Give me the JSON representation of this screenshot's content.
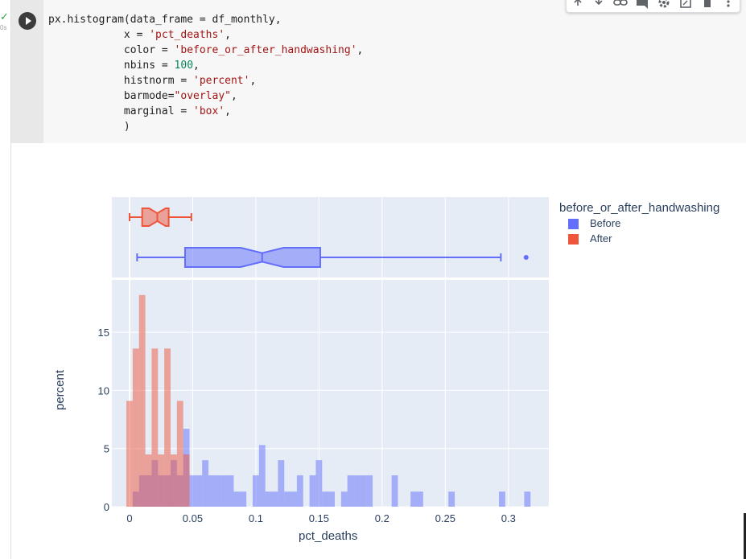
{
  "cell": {
    "status": "✓",
    "exec_time": "0s",
    "code_lines": [
      [
        [
          "t",
          "px.histogram(data_frame = df_monthly,"
        ]
      ],
      [
        [
          "t",
          "            x = "
        ],
        [
          "s",
          "'pct_deaths'"
        ],
        [
          "t",
          ","
        ]
      ],
      [
        [
          "t",
          "            color = "
        ],
        [
          "s",
          "'before_or_after_handwashing'"
        ],
        [
          "t",
          ","
        ]
      ],
      [
        [
          "t",
          "            nbins = "
        ],
        [
          "n",
          "100"
        ],
        [
          "t",
          ","
        ]
      ],
      [
        [
          "t",
          "            histnorm = "
        ],
        [
          "s",
          "'percent'"
        ],
        [
          "t",
          ","
        ]
      ],
      [
        [
          "t",
          "            barmode="
        ],
        [
          "s",
          "\"overlay\""
        ],
        [
          "t",
          ","
        ]
      ],
      [
        [
          "t",
          "            marginal = "
        ],
        [
          "s",
          "'box'"
        ],
        [
          "t",
          ","
        ]
      ],
      [
        [
          "t",
          "            )"
        ]
      ]
    ],
    "toolbar_icons": [
      "arrow-up-icon",
      "arrow-down-icon",
      "link-icon",
      "comment-icon",
      "gear-icon",
      "mirror-cell-icon",
      "delete-icon",
      "more-icon"
    ]
  },
  "chart_data": {
    "type": "histogram",
    "histnorm": "percent",
    "barmode": "overlay",
    "marginal": "box",
    "xlabel": "pct_deaths",
    "ylabel": "percent",
    "xlim": [
      -0.014,
      0.332
    ],
    "ylim": [
      0,
      19.5
    ],
    "x_ticks": [
      0,
      0.05,
      0.1,
      0.15,
      0.2,
      0.25,
      0.3
    ],
    "x_tick_labels": [
      "0",
      "0.05",
      "0.1",
      "0.15",
      "0.2",
      "0.25",
      "0.3"
    ],
    "y_ticks": [
      0,
      5,
      10,
      15
    ],
    "y_tick_labels": [
      "0",
      "5",
      "10",
      "15"
    ],
    "legend_title": "before_or_after_handwashing",
    "legend_position": "top-right",
    "bin_width": 0.005,
    "series": [
      {
        "name": "Before",
        "color": "#636efa",
        "bins": [
          {
            "x0": 0.0025,
            "y": 1.3
          },
          {
            "x0": 0.0075,
            "y": 2.7
          },
          {
            "x0": 0.0125,
            "y": 2.7
          },
          {
            "x0": 0.0175,
            "y": 4
          },
          {
            "x0": 0.0225,
            "y": 2.7
          },
          {
            "x0": 0.0275,
            "y": 2.7
          },
          {
            "x0": 0.0325,
            "y": 4
          },
          {
            "x0": 0.0375,
            "y": 2.7
          },
          {
            "x0": 0.0425,
            "y": 6.7
          },
          {
            "x0": 0.0475,
            "y": 2.7
          },
          {
            "x0": 0.0525,
            "y": 2.7
          },
          {
            "x0": 0.0575,
            "y": 4
          },
          {
            "x0": 0.0625,
            "y": 2.7
          },
          {
            "x0": 0.0675,
            "y": 2.7
          },
          {
            "x0": 0.0725,
            "y": 2.7
          },
          {
            "x0": 0.0775,
            "y": 2.7
          },
          {
            "x0": 0.0825,
            "y": 1.3
          },
          {
            "x0": 0.0875,
            "y": 1.3
          },
          {
            "x0": 0.0975,
            "y": 2.7
          },
          {
            "x0": 0.1025,
            "y": 5.3
          },
          {
            "x0": 0.1075,
            "y": 1.3
          },
          {
            "x0": 0.1125,
            "y": 1.3
          },
          {
            "x0": 0.1175,
            "y": 4
          },
          {
            "x0": 0.1225,
            "y": 1.3
          },
          {
            "x0": 0.1275,
            "y": 1.3
          },
          {
            "x0": 0.1325,
            "y": 2.7
          },
          {
            "x0": 0.1425,
            "y": 2.7
          },
          {
            "x0": 0.1475,
            "y": 4
          },
          {
            "x0": 0.1525,
            "y": 1.3
          },
          {
            "x0": 0.1575,
            "y": 1.3
          },
          {
            "x0": 0.1675,
            "y": 1.3
          },
          {
            "x0": 0.1725,
            "y": 2.7
          },
          {
            "x0": 0.1775,
            "y": 2.7
          },
          {
            "x0": 0.1825,
            "y": 2.7
          },
          {
            "x0": 0.1875,
            "y": 2.7
          },
          {
            "x0": 0.2075,
            "y": 2.7
          },
          {
            "x0": 0.2225,
            "y": 1.3
          },
          {
            "x0": 0.2275,
            "y": 1.3
          },
          {
            "x0": 0.2525,
            "y": 1.3
          },
          {
            "x0": 0.2925,
            "y": 1.3
          },
          {
            "x0": 0.3125,
            "y": 1.3
          }
        ],
        "box": {
          "min": 0.006,
          "q1": 0.044,
          "notch_lo": 0.088,
          "median": 0.105,
          "notch_hi": 0.122,
          "q3": 0.151,
          "max": 0.294,
          "outliers": [
            0.314
          ]
        }
      },
      {
        "name": "After",
        "color": "#ef553b",
        "bins": [
          {
            "x0": -0.0025,
            "y": 9.1
          },
          {
            "x0": 0.0025,
            "y": 13.6
          },
          {
            "x0": 0.0075,
            "y": 18.2
          },
          {
            "x0": 0.0125,
            "y": 4.5
          },
          {
            "x0": 0.0175,
            "y": 13.6
          },
          {
            "x0": 0.0225,
            "y": 4.5
          },
          {
            "x0": 0.0275,
            "y": 13.6
          },
          {
            "x0": 0.0325,
            "y": 4.5
          },
          {
            "x0": 0.0375,
            "y": 9.1
          },
          {
            "x0": 0.0425,
            "y": 4.5
          }
        ],
        "box": {
          "min": 0.0,
          "q1": 0.01,
          "notch_lo": 0.0155,
          "median": 0.022,
          "notch_hi": 0.0285,
          "q3": 0.031,
          "max": 0.049,
          "outliers": []
        }
      }
    ]
  }
}
